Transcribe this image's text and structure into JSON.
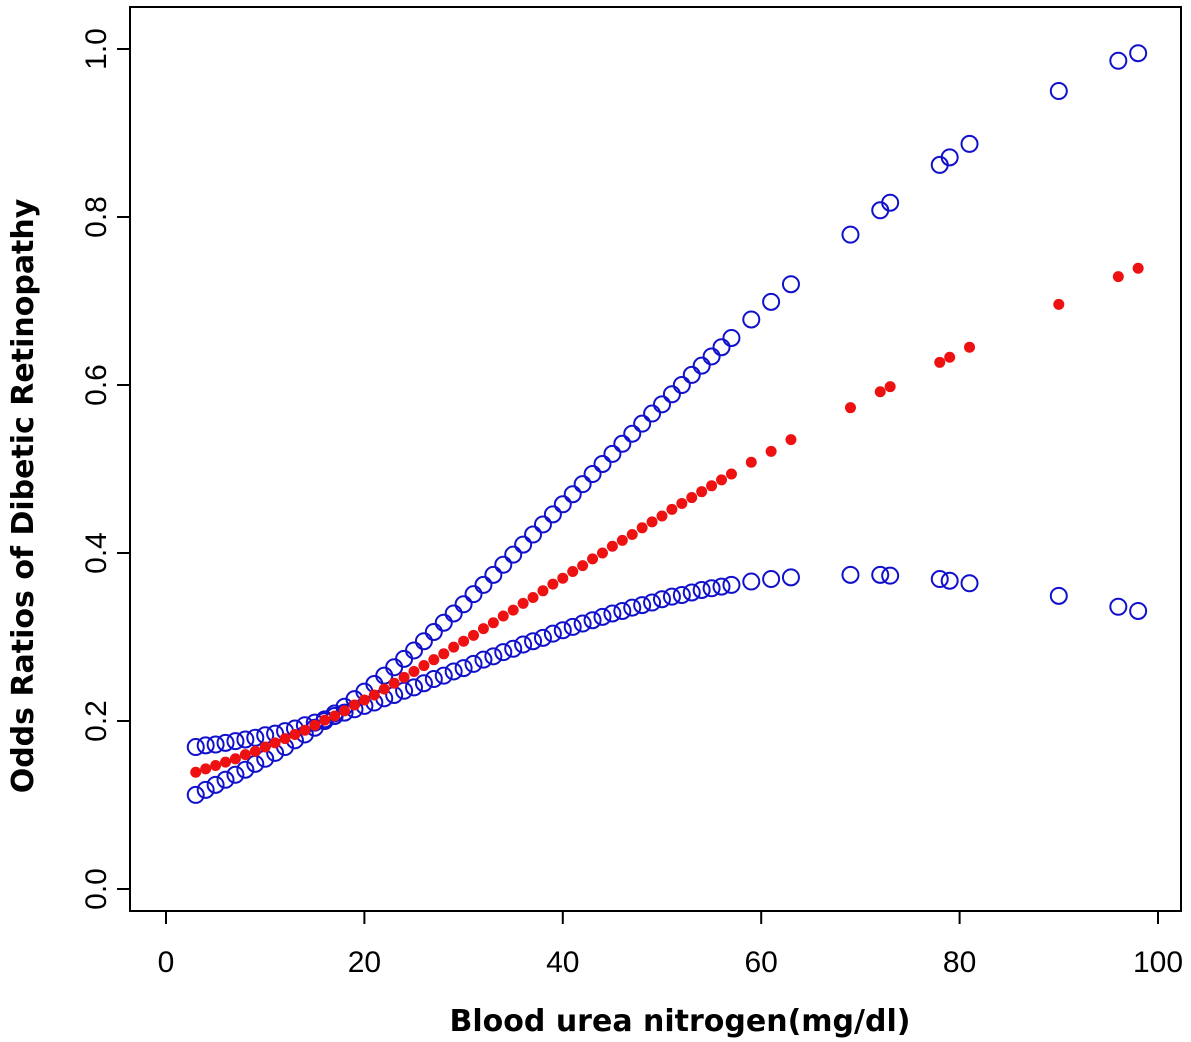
{
  "chart_data": {
    "type": "scatter",
    "title": "",
    "xlabel": "Blood urea nitrogen(mg/dl)",
    "ylabel": "Odds Ratios of Dibetic Retinopathy",
    "xlim": [
      0,
      100
    ],
    "ylim": [
      0,
      1
    ],
    "x_ticks": [
      "0",
      "20",
      "40",
      "60",
      "80",
      "100"
    ],
    "y_ticks": [
      "0.0",
      "0.2",
      "0.4",
      "0.6",
      "0.8",
      "1.0"
    ],
    "grid": false,
    "legend": "none",
    "x": [
      3,
      4,
      5,
      6,
      7,
      8,
      9,
      10,
      11,
      12,
      13,
      14,
      15,
      16,
      17,
      18,
      19,
      20,
      21,
      22,
      23,
      24,
      25,
      26,
      27,
      28,
      29,
      30,
      31,
      32,
      33,
      34,
      35,
      36,
      37,
      38,
      39,
      40,
      41,
      42,
      43,
      44,
      45,
      46,
      47,
      48,
      49,
      50,
      51,
      52,
      53,
      54,
      55,
      56,
      57,
      59,
      61,
      63,
      69,
      72,
      73,
      78,
      79,
      81,
      90,
      96,
      98
    ],
    "series": [
      {
        "name": "Odds ratio",
        "marker": "filled-circle",
        "color": "#ee1111",
        "values": [
          0.139,
          0.143,
          0.147,
          0.151,
          0.155,
          0.16,
          0.164,
          0.169,
          0.174,
          0.179,
          0.184,
          0.189,
          0.195,
          0.201,
          0.206,
          0.212,
          0.219,
          0.225,
          0.231,
          0.238,
          0.245,
          0.252,
          0.259,
          0.266,
          0.273,
          0.28,
          0.288,
          0.295,
          0.302,
          0.31,
          0.317,
          0.325,
          0.332,
          0.34,
          0.347,
          0.355,
          0.363,
          0.37,
          0.378,
          0.385,
          0.393,
          0.4,
          0.408,
          0.415,
          0.422,
          0.43,
          0.437,
          0.444,
          0.452,
          0.459,
          0.466,
          0.473,
          0.48,
          0.487,
          0.494,
          0.508,
          0.521,
          0.535,
          0.573,
          0.592,
          0.598,
          0.627,
          0.633,
          0.645,
          0.696,
          0.729,
          0.739
        ]
      },
      {
        "name": "Upper 95% CI",
        "marker": "open-circle",
        "color": "#1111cc",
        "values": [
          0.112,
          0.118,
          0.124,
          0.13,
          0.136,
          0.142,
          0.149,
          0.155,
          0.162,
          0.169,
          0.177,
          0.184,
          0.192,
          0.2,
          0.209,
          0.217,
          0.226,
          0.235,
          0.244,
          0.254,
          0.264,
          0.274,
          0.284,
          0.295,
          0.306,
          0.317,
          0.328,
          0.339,
          0.351,
          0.362,
          0.374,
          0.386,
          0.398,
          0.41,
          0.422,
          0.434,
          0.446,
          0.458,
          0.47,
          0.482,
          0.494,
          0.506,
          0.518,
          0.53,
          0.542,
          0.554,
          0.566,
          0.577,
          0.589,
          0.6,
          0.612,
          0.623,
          0.634,
          0.645,
          0.656,
          0.678,
          0.699,
          0.72,
          0.779,
          0.808,
          0.817,
          0.862,
          0.871,
          0.887,
          0.95,
          0.986,
          0.995
        ]
      },
      {
        "name": "Lower 95% CI",
        "marker": "open-circle",
        "color": "#1111cc",
        "values": [
          0.169,
          0.171,
          0.172,
          0.174,
          0.176,
          0.178,
          0.18,
          0.183,
          0.185,
          0.188,
          0.191,
          0.195,
          0.198,
          0.202,
          0.206,
          0.21,
          0.214,
          0.218,
          0.222,
          0.227,
          0.231,
          0.236,
          0.24,
          0.245,
          0.25,
          0.254,
          0.259,
          0.263,
          0.268,
          0.273,
          0.277,
          0.282,
          0.286,
          0.291,
          0.295,
          0.299,
          0.304,
          0.308,
          0.312,
          0.316,
          0.32,
          0.324,
          0.328,
          0.331,
          0.335,
          0.338,
          0.341,
          0.345,
          0.348,
          0.35,
          0.353,
          0.356,
          0.358,
          0.36,
          0.362,
          0.366,
          0.369,
          0.371,
          0.374,
          0.374,
          0.373,
          0.369,
          0.367,
          0.364,
          0.349,
          0.336,
          0.331
        ]
      }
    ]
  }
}
